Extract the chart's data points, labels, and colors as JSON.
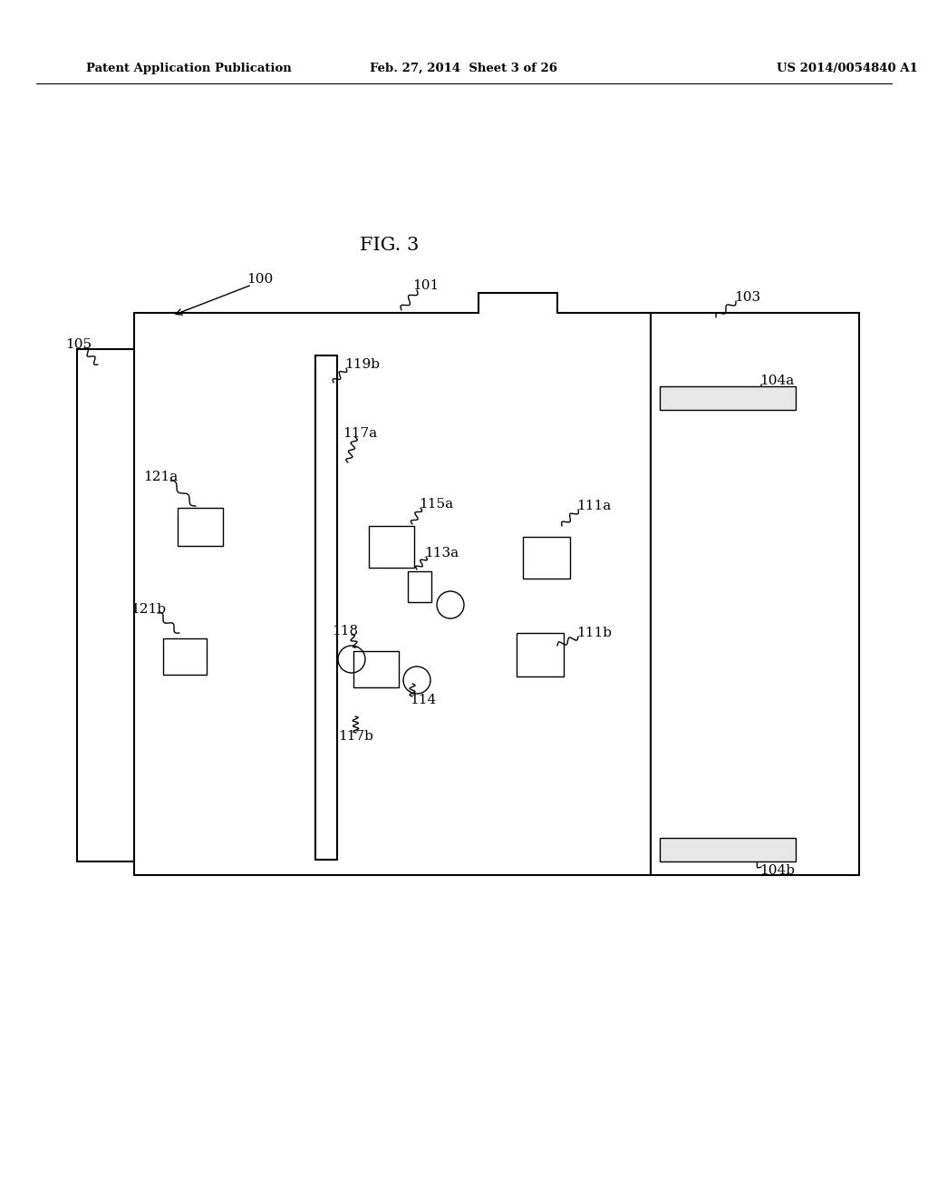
{
  "bg_color": "#ffffff",
  "header_left": "Patent Application Publication",
  "header_center": "Feb. 27, 2014  Sheet 3 of 26",
  "header_right": "US 2014/0054840 A1",
  "fig_title": "FIG. 3"
}
